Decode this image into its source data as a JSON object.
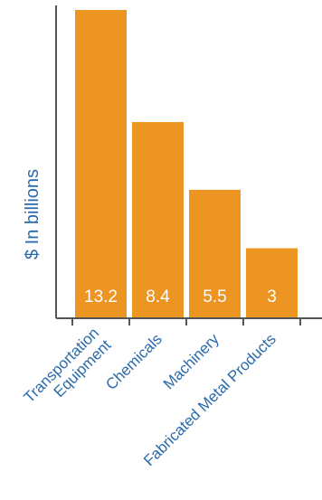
{
  "chart_data": {
    "type": "bar",
    "categories": [
      [
        "Transportation",
        "Equipment"
      ],
      [
        "Chemicals"
      ],
      [
        "Machinery"
      ],
      [
        "Fabricated Metal Products"
      ]
    ],
    "values": [
      13.2,
      8.4,
      5.5,
      3
    ],
    "value_labels": [
      "13.2",
      "8.4",
      "5.5",
      "3"
    ],
    "title": "",
    "xlabel": "",
    "ylabel": "$ In billions",
    "ylim": [
      0,
      13.2
    ],
    "grid": false,
    "legend": "none",
    "colors": {
      "bar": "#EC9523",
      "label": "#2A6AAA",
      "axis": "#555555",
      "value_text": "#FFFFFF"
    }
  }
}
